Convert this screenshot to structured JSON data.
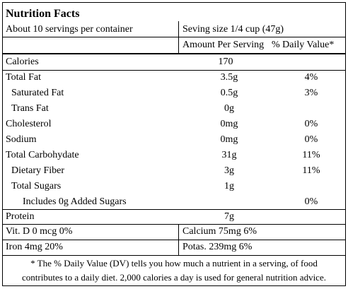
{
  "title": "Nutrition Facts",
  "servings": "About 10 servings per container",
  "serving_size": "Seving size 1/4 cup (47g)",
  "header": {
    "amount": "Amount Per Serving",
    "daily_value": "% Daily Value*"
  },
  "rows": [
    [
      "Calories",
      "170",
      null
    ],
    [
      "Total Fat",
      "3.5g",
      "4%"
    ],
    [
      "Saturated Fat",
      "0.5g",
      "3%"
    ],
    [
      "Trans Fat",
      "0g",
      null
    ],
    [
      "Cholesterol",
      "0mg",
      "0%"
    ],
    [
      "Sodium",
      "0mg",
      "0%"
    ],
    [
      "Total Carbohydate",
      "31g",
      "11%"
    ],
    [
      "Dietary Fiber",
      "3g",
      "11%"
    ],
    [
      "Total Sugars",
      "1g",
      null
    ],
    [
      "Includes 0g Added Sugars",
      null,
      "0%"
    ],
    [
      "Protein",
      "7g",
      null
    ]
  ],
  "vitamins": [
    [
      "Vit. D 0 mcg 0%",
      "Calcium 75mg 6%"
    ],
    [
      "Iron 4mg 20%",
      "Potas. 239mg 6%"
    ]
  ],
  "footnote": [
    "* The % Daily Value (DV) tells you how much a nutrient in a serving, of food",
    "contributes to a daily diet. 2,000 calories a day is used for general nutrition advice."
  ]
}
